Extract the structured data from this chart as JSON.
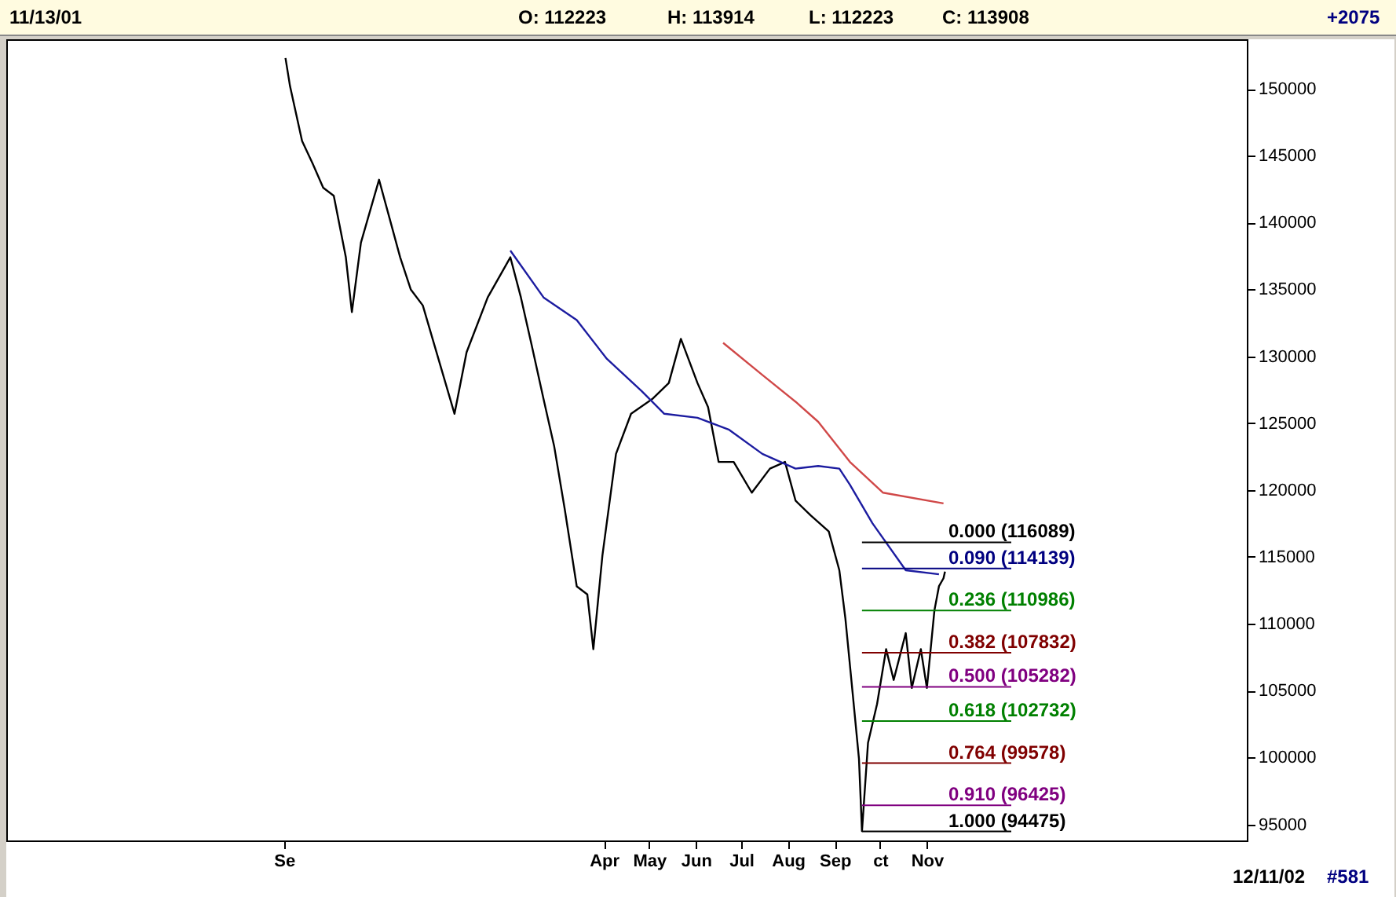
{
  "chart_data": {
    "type": "line",
    "line_style": "solid",
    "annotations": [
      "11/13/01",
      "O: 112223",
      "H: 113914",
      "L: 112223",
      "C: 113908",
      "+2075",
      "12/11/02",
      "#581"
    ],
    "x": [
      "2000-09-02",
      "2000-09-05",
      "2000-09-13",
      "2000-09-20",
      "2000-09-27",
      "2000-10-04",
      "2000-10-12",
      "2000-10-16",
      "2000-10-22",
      "2000-11-03",
      "2000-11-10",
      "2000-11-17",
      "2000-11-24",
      "2000-12-02",
      "2000-12-23",
      "2000-12-31",
      "2001-01-14",
      "2001-01-29",
      "2001-02-05",
      "2001-02-12",
      "2001-02-20",
      "2001-02-27",
      "2001-03-06",
      "2001-03-14",
      "2001-03-21",
      "2001-03-25",
      "2001-03-31",
      "2001-04-09",
      "2001-04-19",
      "2001-05-03",
      "2001-05-14",
      "2001-05-22",
      "2001-06-02",
      "2001-06-09",
      "2001-06-16",
      "2001-06-26",
      "2001-07-08",
      "2001-07-20",
      "2001-07-30",
      "2001-08-06",
      "2001-08-16",
      "2001-08-28",
      "2001-09-04",
      "2001-09-08",
      "2001-09-13",
      "2001-09-17",
      "2001-09-19",
      "2001-09-23",
      "2001-09-29",
      "2001-10-05",
      "2001-10-10",
      "2001-10-18",
      "2001-10-22",
      "2001-10-28",
      "2001-11-01",
      "2001-11-06",
      "2001-11-09",
      "2001-11-12",
      "2001-11-13"
    ],
    "series": [
      {
        "color": "#000000",
        "values": [
          152300,
          150200,
          146100,
          144400,
          142600,
          142000,
          137400,
          133300,
          138500,
          143200,
          140300,
          137400,
          135000,
          133800,
          125700,
          130300,
          134400,
          137400,
          134400,
          130900,
          126800,
          123300,
          118600,
          112800,
          112200,
          108100,
          115100,
          122700,
          125700,
          126800,
          128000,
          131300,
          128000,
          126200,
          122100,
          122100,
          119800,
          121600,
          122100,
          119200,
          118100,
          116900,
          114000,
          110400,
          104600,
          99900,
          94500,
          101100,
          104000,
          108100,
          105800,
          109300,
          105200,
          108100,
          105200,
          111000,
          112800,
          113400,
          113900
        ]
      },
      {
        "color": "#1c1ca0",
        "x": [
          "2001-01-29",
          "2001-02-20",
          "2001-03-14",
          "2001-04-03",
          "2001-04-26",
          "2001-05-11",
          "2001-06-02",
          "2001-06-23",
          "2001-07-15",
          "2001-08-06",
          "2001-08-21",
          "2001-09-04",
          "2001-09-11",
          "2001-09-26",
          "2001-10-18",
          "2001-11-09"
        ],
        "values": [
          137900,
          134400,
          132700,
          129800,
          127400,
          125700,
          125400,
          124500,
          122700,
          121600,
          121800,
          121600,
          120400,
          117500,
          114000,
          113700
        ]
      },
      {
        "color": "#d04848",
        "x": [
          "2001-06-19",
          "2001-07-15",
          "2001-08-06",
          "2001-08-21",
          "2001-09-11",
          "2001-10-03",
          "2001-11-12"
        ],
        "values": [
          131000,
          128600,
          126600,
          125100,
          122100,
          119800,
          119000
        ]
      }
    ],
    "ref_lines": [
      {
        "axis": "y",
        "value": 116089,
        "label": "0.000 (116089)",
        "color": "#000000"
      },
      {
        "axis": "y",
        "value": 114139,
        "label": "0.090 (114139)",
        "color": "#000080"
      },
      {
        "axis": "y",
        "value": 110986,
        "label": "0.236 (110986)",
        "color": "#008000"
      },
      {
        "axis": "y",
        "value": 107832,
        "label": "0.382 (107832)",
        "color": "#800000"
      },
      {
        "axis": "y",
        "value": 105282,
        "label": "0.500 (105282)",
        "color": "#800080"
      },
      {
        "axis": "y",
        "value": 102732,
        "label": "0.618 (102732)",
        "color": "#008000"
      },
      {
        "axis": "y",
        "value": 99578,
        "label": "0.764 (99578)",
        "color": "#800000"
      },
      {
        "axis": "y",
        "value": 96425,
        "label": "0.910 (96425)",
        "color": "#800080"
      },
      {
        "axis": "y",
        "value": 94475,
        "label": "1.000 (94475)",
        "color": "#000000"
      }
    ],
    "xlim": [
      "2000-03-01",
      "2002-06-01"
    ],
    "xticks": [
      {
        "value": "2000-09-01",
        "label": "Se"
      },
      {
        "value": "2001-04-01",
        "label": "Apr"
      },
      {
        "value": "2001-05-01",
        "label": "May"
      },
      {
        "value": "2001-06-01",
        "label": "Jun"
      },
      {
        "value": "2001-07-01",
        "label": "Jul"
      },
      {
        "value": "2001-08-01",
        "label": "Aug"
      },
      {
        "value": "2001-09-01",
        "label": "Sep"
      },
      {
        "value": "2001-10-01",
        "label": "ct"
      },
      {
        "value": "2001-11-01",
        "label": "Nov"
      }
    ],
    "ylim": [
      93800,
      153700
    ],
    "yticks": [
      95000,
      100000,
      105000,
      110000,
      115000,
      120000,
      125000,
      130000,
      135000,
      140000,
      145000,
      150000
    ]
  }
}
